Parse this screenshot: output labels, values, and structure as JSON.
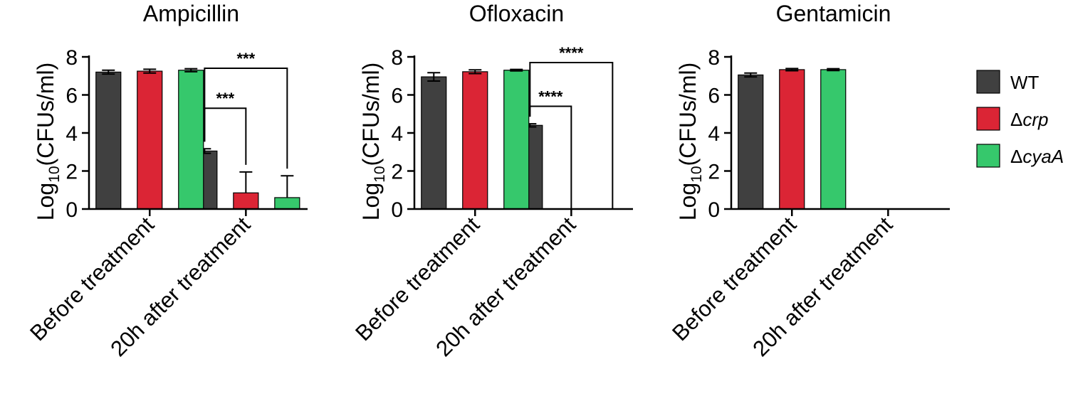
{
  "ylabel": {
    "prefix": "Log",
    "sub": "10",
    "suffix": "(CFUs/ml)"
  },
  "colors": {
    "wt": "#404040",
    "crp": "#db2535",
    "cyaA": "#36c86c"
  },
  "legend": [
    {
      "symbol": "",
      "italic": "WT",
      "plain_prefix": "WT",
      "is_italic": false,
      "color_key": "wt"
    },
    {
      "symbol": "Δ",
      "italic": "crp",
      "color_key": "crp"
    },
    {
      "symbol": "Δ",
      "italic": "cyaA",
      "color_key": "cyaA"
    }
  ],
  "chart_data": [
    {
      "type": "bar",
      "title": "Ampicillin",
      "categories": [
        "Before treatment",
        "20h after treatment"
      ],
      "ylim": [
        0,
        8
      ],
      "yticks": [
        0,
        2,
        4,
        6,
        8
      ],
      "series": [
        {
          "name": "WT",
          "values": [
            7.2,
            3.05
          ],
          "errors": [
            0.1,
            0.12
          ]
        },
        {
          "name": "Δcrp",
          "values": [
            7.25,
            0.85
          ],
          "errors": [
            0.1,
            1.1
          ]
        },
        {
          "name": "ΔcyaA",
          "values": [
            7.3,
            0.6
          ],
          "errors": [
            0.08,
            1.15
          ]
        }
      ],
      "annotations": [
        {
          "from_series": 0,
          "to_series": 1,
          "category": 1,
          "label": "***",
          "y": 5.3
        },
        {
          "from_series": 0,
          "to_series": 2,
          "category": 1,
          "label": "***",
          "y": 7.4
        }
      ]
    },
    {
      "type": "bar",
      "title": "Ofloxacin",
      "categories": [
        "Before treatment",
        "20h after treatment"
      ],
      "ylim": [
        0,
        8
      ],
      "yticks": [
        0,
        2,
        4,
        6,
        8
      ],
      "series": [
        {
          "name": "WT",
          "values": [
            6.95,
            4.4
          ],
          "errors": [
            0.22,
            0.08
          ]
        },
        {
          "name": "Δcrp",
          "values": [
            7.22,
            0
          ],
          "errors": [
            0.1,
            0
          ]
        },
        {
          "name": "ΔcyaA",
          "values": [
            7.3,
            0
          ],
          "errors": [
            0.04,
            0
          ]
        }
      ],
      "annotations": [
        {
          "from_series": 0,
          "to_series": 1,
          "category": 1,
          "label": "****",
          "y": 5.4
        },
        {
          "from_series": 0,
          "to_series": 2,
          "category": 1,
          "label": "****",
          "y": 7.7
        }
      ]
    },
    {
      "type": "bar",
      "title": "Gentamicin",
      "categories": [
        "Before treatment",
        "20h after treatment"
      ],
      "ylim": [
        0,
        8
      ],
      "yticks": [
        0,
        2,
        4,
        6,
        8
      ],
      "series": [
        {
          "name": "WT",
          "values": [
            7.05,
            0
          ],
          "errors": [
            0.1,
            0
          ]
        },
        {
          "name": "Δcrp",
          "values": [
            7.33,
            0
          ],
          "errors": [
            0.06,
            0
          ]
        },
        {
          "name": "ΔcyaA",
          "values": [
            7.33,
            0
          ],
          "errors": [
            0.05,
            0
          ]
        }
      ],
      "annotations": []
    }
  ]
}
